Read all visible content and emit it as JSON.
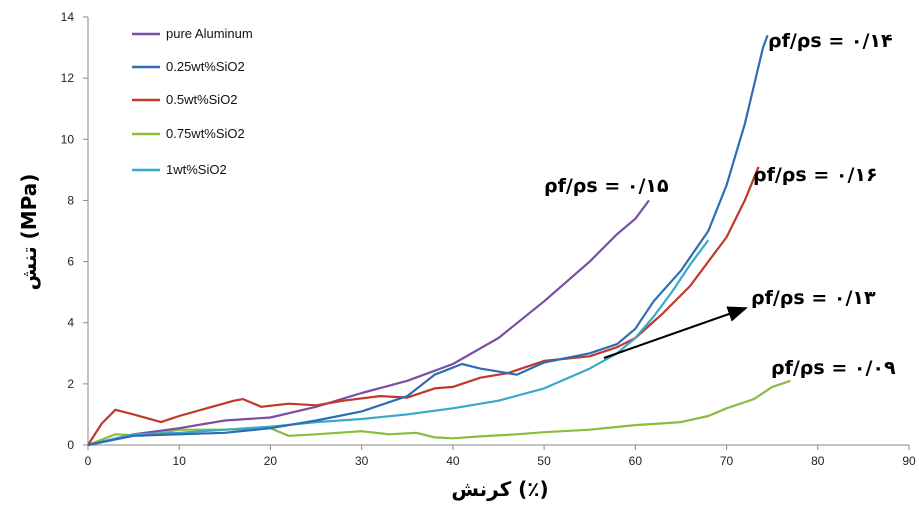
{
  "chart_data": {
    "type": "line",
    "xlabel": "کرنش (٪)",
    "ylabel": "تنش (MPa)",
    "xlim": [
      0,
      90
    ],
    "ylim": [
      0,
      14
    ],
    "x_ticks": [
      "0",
      "10",
      "20",
      "30",
      "40",
      "50",
      "60",
      "70",
      "80",
      "90"
    ],
    "y_ticks": [
      "0",
      "2",
      "4",
      "6",
      "8",
      "10",
      "12",
      "14"
    ],
    "grid": false,
    "legend_position": "top-left",
    "series": [
      {
        "name": "pure Aluminum",
        "color": "#7B4EA3",
        "x": [
          0,
          5,
          10,
          15,
          20,
          25,
          30,
          35,
          40,
          45,
          50,
          55,
          58,
          60,
          61.5
        ],
        "y": [
          0,
          0.35,
          0.55,
          0.8,
          0.9,
          1.25,
          1.7,
          2.1,
          2.65,
          3.5,
          4.7,
          6.0,
          6.9,
          7.4,
          8.0
        ]
      },
      {
        "name": "0.25wt%SiO2",
        "color": "#2E6DB4",
        "x": [
          0,
          5,
          10,
          15,
          20,
          25,
          30,
          35,
          38,
          41,
          43,
          45,
          47,
          50,
          55,
          58,
          60,
          62,
          65,
          68,
          70,
          72,
          74,
          74.5
        ],
        "y": [
          0,
          0.3,
          0.35,
          0.4,
          0.55,
          0.8,
          1.1,
          1.6,
          2.3,
          2.65,
          2.5,
          2.4,
          2.3,
          2.7,
          3.0,
          3.3,
          3.8,
          4.7,
          5.7,
          7.0,
          8.5,
          10.5,
          13.0,
          13.4
        ]
      },
      {
        "name": "0.5wt%SiO2",
        "color": "#C0392B",
        "x": [
          0,
          1.5,
          3,
          5,
          8,
          10,
          13,
          16,
          17,
          19,
          22,
          25,
          28,
          32,
          35,
          38,
          40,
          43,
          46,
          50,
          55,
          58,
          60,
          63,
          66,
          70,
          72,
          73.5
        ],
        "y": [
          0,
          0.7,
          1.15,
          1.0,
          0.75,
          0.95,
          1.2,
          1.45,
          1.5,
          1.25,
          1.35,
          1.3,
          1.45,
          1.6,
          1.55,
          1.85,
          1.9,
          2.2,
          2.35,
          2.75,
          2.9,
          3.2,
          3.5,
          4.3,
          5.2,
          6.8,
          8.0,
          9.1
        ]
      },
      {
        "name": "0.75wt%SiO2",
        "color": "#8DBB3A",
        "x": [
          0,
          3,
          6,
          10,
          15,
          20,
          22,
          25,
          30,
          33,
          36,
          38,
          40,
          43,
          47,
          50,
          55,
          60,
          65,
          68,
          70,
          73,
          75,
          77
        ],
        "y": [
          0,
          0.35,
          0.3,
          0.5,
          0.5,
          0.55,
          0.3,
          0.35,
          0.45,
          0.35,
          0.4,
          0.25,
          0.22,
          0.28,
          0.35,
          0.42,
          0.5,
          0.65,
          0.75,
          0.95,
          1.2,
          1.5,
          1.9,
          2.1
        ]
      },
      {
        "name": "1wt%SiO2",
        "color": "#3AA8C8",
        "x": [
          0,
          5,
          10,
          15,
          20,
          25,
          30,
          35,
          40,
          45,
          50,
          55,
          58,
          60,
          62,
          64,
          66,
          68
        ],
        "y": [
          0,
          0.35,
          0.4,
          0.5,
          0.6,
          0.75,
          0.85,
          1.0,
          1.2,
          1.45,
          1.85,
          2.5,
          3.0,
          3.5,
          4.2,
          5.0,
          5.9,
          6.7
        ]
      }
    ],
    "annotations": [
      {
        "text": "ρf/ρs = ۰/۱۴",
        "series": "0.25wt%SiO2"
      },
      {
        "text": "ρf/ρs = ۰/۱۵",
        "series": "pure Aluminum"
      },
      {
        "text": "ρf/ρs = ۰/۱۶",
        "series": "0.5wt%SiO2"
      },
      {
        "text": "ρf/ρs = ۰/۱۳",
        "series": "1wt%SiO2"
      },
      {
        "text": "ρf/ρs = ۰/۰۹",
        "series": "0.75wt%SiO2"
      }
    ]
  }
}
